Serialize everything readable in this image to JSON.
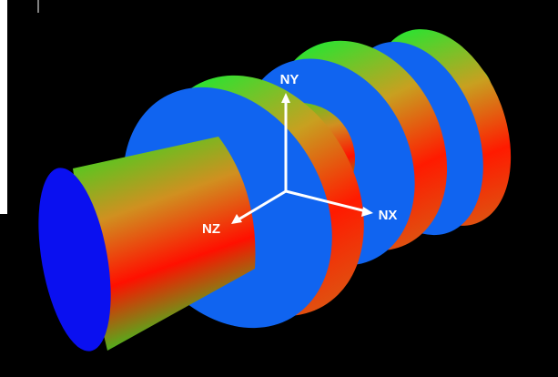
{
  "axes": {
    "ny": "NY",
    "nx": "NX",
    "nz": "NZ"
  }
}
